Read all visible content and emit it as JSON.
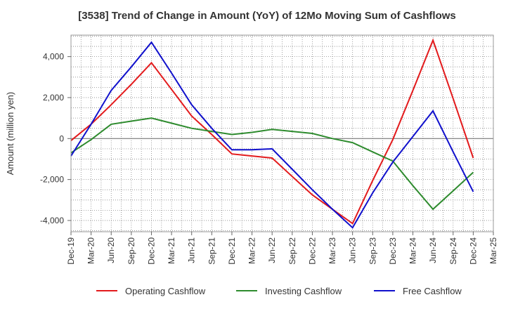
{
  "chart_data": {
    "type": "line",
    "title": "[3538]  Trend of Change in Amount (YoY) of 12Mo Moving Sum of Cashflows",
    "xlabel": "",
    "ylabel": "Amount (million yen)",
    "x": [
      "Dec-19",
      "Mar-20",
      "Jun-20",
      "Sep-20",
      "Dec-20",
      "Mar-21",
      "Jun-21",
      "Sep-21",
      "Dec-21",
      "Mar-22",
      "Jun-22",
      "Sep-22",
      "Dec-22",
      "Mar-23",
      "Jun-23",
      "Sep-23",
      "Dec-23",
      "Mar-24",
      "Jun-24",
      "Sep-24",
      "Dec-24",
      "Mar-25"
    ],
    "yticks": [
      -4000,
      -2000,
      0,
      2000,
      4000
    ],
    "ytick_labels": [
      "-4,000",
      "-2,000",
      "0",
      "2,000",
      "4,000"
    ],
    "ylim": [
      -4550,
      5050
    ],
    "grid": true,
    "legend_position": "bottom",
    "series": [
      {
        "name": "Operating Cashflow",
        "color": "#e31a1c",
        "values": [
          -100,
          700,
          1650,
          2650,
          3700,
          2400,
          1100,
          200,
          -750,
          -850,
          -950,
          -1850,
          -2750,
          -3450,
          -4150,
          -2050,
          -50,
          2350,
          4800,
          1950,
          -950,
          null
        ]
      },
      {
        "name": "Investing Cashflow",
        "color": "#2e8b2e",
        "values": [
          -700,
          -50,
          700,
          850,
          1000,
          750,
          500,
          350,
          200,
          300,
          450,
          350,
          250,
          0,
          -200,
          -650,
          -1100,
          -2300,
          -3450,
          -2550,
          -1650,
          null
        ]
      },
      {
        "name": "Free Cashflow",
        "color": "#1010cc",
        "values": [
          -850,
          700,
          2350,
          3500,
          4700,
          3200,
          1650,
          500,
          -550,
          -550,
          -500,
          -1500,
          -2500,
          -3450,
          -4350,
          -2650,
          -1150,
          100,
          1350,
          -650,
          -2600,
          null
        ]
      }
    ]
  }
}
